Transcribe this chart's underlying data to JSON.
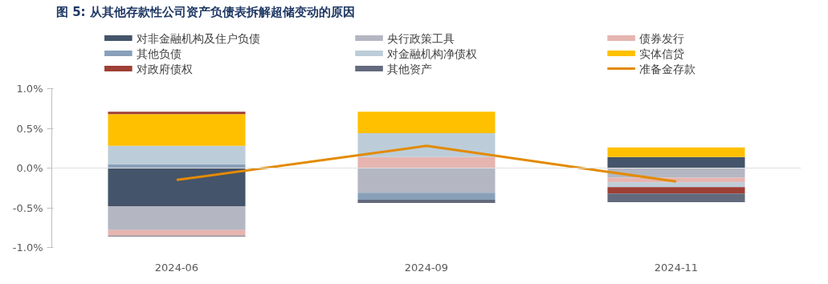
{
  "chart_data": {
    "type": "bar",
    "stacked": true,
    "title": "图 5: 从其他存款性公司资产负债表拆解超储变动的原因",
    "categories": [
      "2024-06",
      "2024-09",
      "2024-11"
    ],
    "ylim": [
      -1.0,
      1.0
    ],
    "yticks": [
      {
        "value": -1.0,
        "label": "-1.0%"
      },
      {
        "value": -0.5,
        "label": "-0.5%"
      },
      {
        "value": 0.0,
        "label": "0.0%"
      },
      {
        "value": 0.5,
        "label": "0.5%"
      },
      {
        "value": 1.0,
        "label": "1.0%"
      }
    ],
    "grid": false,
    "legend": "top",
    "ref_lines": [
      {
        "axis": "y",
        "value": 0.0,
        "color": "#e0e0e0",
        "line_style": "solid"
      }
    ],
    "series": [
      {
        "name": "对非金融机构及住户负债",
        "color": "#44546a",
        "values": [
          -0.48,
          null,
          0.14
        ]
      },
      {
        "name": "央行政策工具",
        "color": "#b4b7c2",
        "values": [
          -0.3,
          -0.31,
          -0.12
        ]
      },
      {
        "name": "债券发行",
        "color": "#e6b5b0",
        "values": [
          -0.07,
          0.14,
          -0.06
        ]
      },
      {
        "name": "其他负债",
        "color": "#8aa0b9",
        "values": [
          0.05,
          -0.09,
          null
        ]
      },
      {
        "name": "对金融机构净债权",
        "color": "#bccdd9",
        "values": [
          0.23,
          0.3,
          -0.06
        ]
      },
      {
        "name": "实体信贷",
        "color": "#ffc000",
        "values": [
          0.4,
          0.27,
          0.12
        ]
      },
      {
        "name": "对政府债权",
        "color": "#9e3f35",
        "values": [
          0.03,
          null,
          -0.08
        ]
      },
      {
        "name": "其他资产",
        "color": "#636a7d",
        "values": [
          -0.01,
          -0.04,
          -0.11
        ]
      },
      {
        "name": "准备金存款",
        "color": "#e38a00",
        "type": "line",
        "line_style": "solid",
        "values": [
          -0.15,
          0.28,
          -0.17
        ]
      }
    ]
  }
}
